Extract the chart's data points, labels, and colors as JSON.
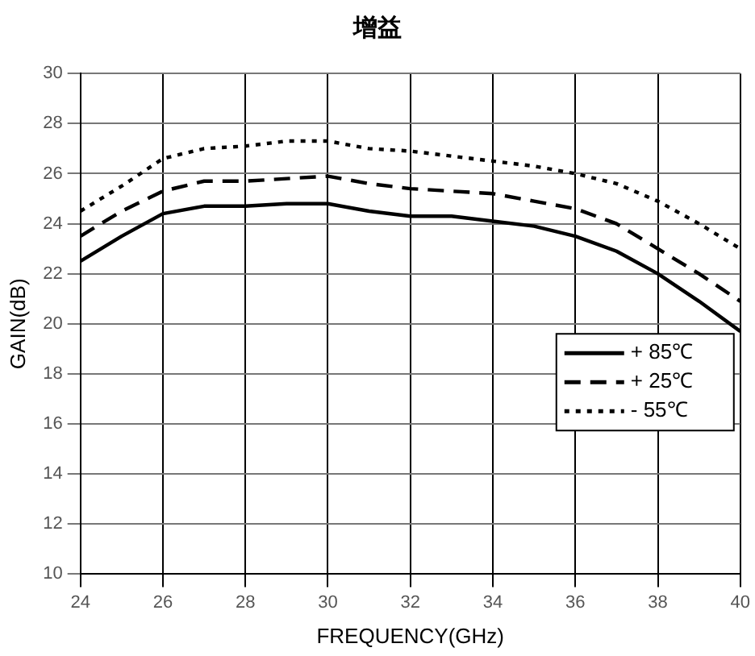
{
  "chart_data": {
    "type": "line",
    "title": "增益",
    "xlabel": "FREQUENCY(GHz)",
    "ylabel": "GAIN(dB)",
    "x": [
      24,
      25,
      26,
      27,
      28,
      29,
      30,
      31,
      32,
      33,
      34,
      35,
      36,
      37,
      38,
      39,
      40
    ],
    "series": [
      {
        "name": "+ 85℃",
        "color": "#000000",
        "line_style": "solid",
        "values": [
          22.5,
          23.5,
          24.4,
          24.7,
          24.7,
          24.8,
          24.8,
          24.5,
          24.3,
          24.3,
          24.1,
          23.9,
          23.5,
          22.9,
          22.0,
          20.9,
          19.7
        ]
      },
      {
        "name": "+ 25℃",
        "color": "#000000",
        "line_style": "dashed",
        "values": [
          23.5,
          24.5,
          25.3,
          25.7,
          25.7,
          25.8,
          25.9,
          25.6,
          25.4,
          25.3,
          25.2,
          24.9,
          24.6,
          24.0,
          23.0,
          22.0,
          20.9
        ]
      },
      {
        "name": "- 55℃",
        "color": "#000000",
        "line_style": "dotted",
        "values": [
          24.5,
          25.5,
          26.6,
          27.0,
          27.1,
          27.3,
          27.3,
          27.0,
          26.9,
          26.7,
          26.5,
          26.3,
          26.0,
          25.6,
          24.9,
          24.0,
          23.0
        ]
      }
    ],
    "xlim": [
      24,
      40
    ],
    "xticks": [
      24,
      26,
      28,
      30,
      32,
      34,
      36,
      38,
      40
    ],
    "ylim": [
      10,
      30
    ],
    "yticks": [
      10,
      12,
      14,
      16,
      18,
      20,
      22,
      24,
      26,
      28,
      30
    ],
    "grid": true,
    "legend": "right",
    "marker": "none"
  }
}
